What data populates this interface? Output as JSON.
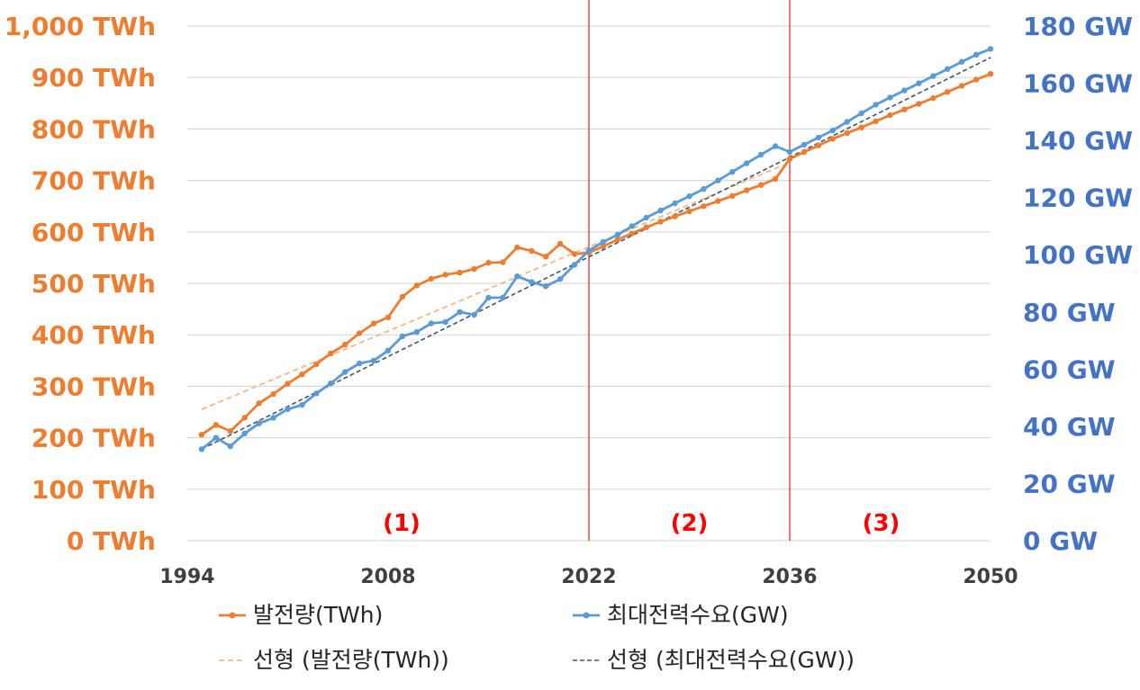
{
  "colors": {
    "generation": "#ED7D31",
    "demand": "#5B9BD5",
    "generation_trend": "#F4B183",
    "demand_trend": "#44546A",
    "left_axis": "#ED7D31",
    "right_axis": "#4472C4",
    "divider": "#E03030",
    "region_label": "#FF0000",
    "grid": "#D9D9D9"
  },
  "chart_data": {
    "type": "line",
    "x_ticks": [
      "1994",
      "2008",
      "2022",
      "2036",
      "2050"
    ],
    "xlim": [
      1994,
      2050
    ],
    "left_axis": {
      "ticks": [
        "0 TWh",
        "100 TWh",
        "200 TWh",
        "300 TWh",
        "400 TWh",
        "500 TWh",
        "600 TWh",
        "700 TWh",
        "800 TWh",
        "900 TWh",
        "1,000 TWh"
      ],
      "ylim": [
        0,
        1000
      ]
    },
    "right_axis": {
      "ticks": [
        "0 GW",
        "20 GW",
        "40 GW",
        "60 GW",
        "80 GW",
        "100 GW",
        "120 GW",
        "140 GW",
        "160 GW",
        "180 GW"
      ],
      "ylim": [
        0,
        180
      ]
    },
    "region_labels": [
      "(1)",
      "(2)",
      "(3)"
    ],
    "dividers": [
      2022,
      2036
    ],
    "series": [
      {
        "name": "발전량(TWh)",
        "axis": "left",
        "x": [
          1995,
          1996,
          1997,
          1998,
          1999,
          2000,
          2001,
          2002,
          2003,
          2004,
          2005,
          2006,
          2007,
          2008,
          2009,
          2010,
          2011,
          2012,
          2013,
          2014,
          2015,
          2016,
          2017,
          2018,
          2019,
          2020,
          2021,
          2022,
          2023,
          2024,
          2025,
          2026,
          2027,
          2028,
          2029,
          2030,
          2031,
          2032,
          2033,
          2034,
          2035,
          2036,
          2037,
          2038,
          2039,
          2040,
          2041,
          2042,
          2043,
          2044,
          2045,
          2046,
          2047,
          2048,
          2049,
          2050
        ],
        "values": [
          206,
          225,
          213,
          239,
          267,
          285,
          305,
          323,
          343,
          364,
          381,
          403,
          422,
          434,
          474,
          496,
          509,
          517,
          521,
          528,
          540,
          541,
          570,
          563,
          552,
          577,
          557,
          560,
          572,
          585,
          597,
          609,
          620,
          630,
          640,
          650,
          660,
          670,
          681,
          691,
          703,
          742,
          755,
          768,
          781,
          792,
          803,
          815,
          827,
          838,
          849,
          860,
          872,
          884,
          896,
          907
        ]
      },
      {
        "name": "최대전력수요(GW)",
        "axis": "right",
        "x": [
          1995,
          1996,
          1997,
          1998,
          1999,
          2000,
          2001,
          2002,
          2003,
          2004,
          2005,
          2006,
          2007,
          2008,
          2009,
          2010,
          2011,
          2012,
          2013,
          2014,
          2015,
          2016,
          2017,
          2018,
          2019,
          2020,
          2021,
          2022,
          2023,
          2024,
          2025,
          2026,
          2027,
          2028,
          2029,
          2030,
          2031,
          2032,
          2033,
          2034,
          2035,
          2036,
          2037,
          2038,
          2039,
          2040,
          2041,
          2042,
          2043,
          2044,
          2045,
          2046,
          2047,
          2048,
          2049,
          2050
        ],
        "values": [
          32,
          36,
          33,
          37.5,
          41,
          43,
          46,
          47.5,
          51.5,
          55,
          59,
          62,
          63,
          66.5,
          71.5,
          73,
          76,
          76.5,
          80,
          79,
          85,
          85,
          92.5,
          90.5,
          89,
          91.5,
          96.5,
          101.5,
          104.5,
          107,
          110,
          113,
          115.5,
          118,
          120.5,
          123,
          126,
          129,
          132,
          135,
          138,
          136,
          138.5,
          141,
          143.5,
          146.5,
          149.5,
          152.5,
          155,
          157.5,
          160,
          162.5,
          165,
          167.5,
          170,
          172
        ]
      },
      {
        "name": "선형 (발전량(TWh))",
        "axis": "left",
        "style": "dashed",
        "x": [
          1995,
          2036
        ],
        "values": [
          255,
          735
        ]
      },
      {
        "name": "선형 (최대전력수요(GW))",
        "axis": "right",
        "style": "dashed",
        "x": [
          1995,
          2050
        ],
        "values": [
          32,
          169
        ]
      }
    ],
    "legend_position": "bottom",
    "grid": "horizontal"
  }
}
